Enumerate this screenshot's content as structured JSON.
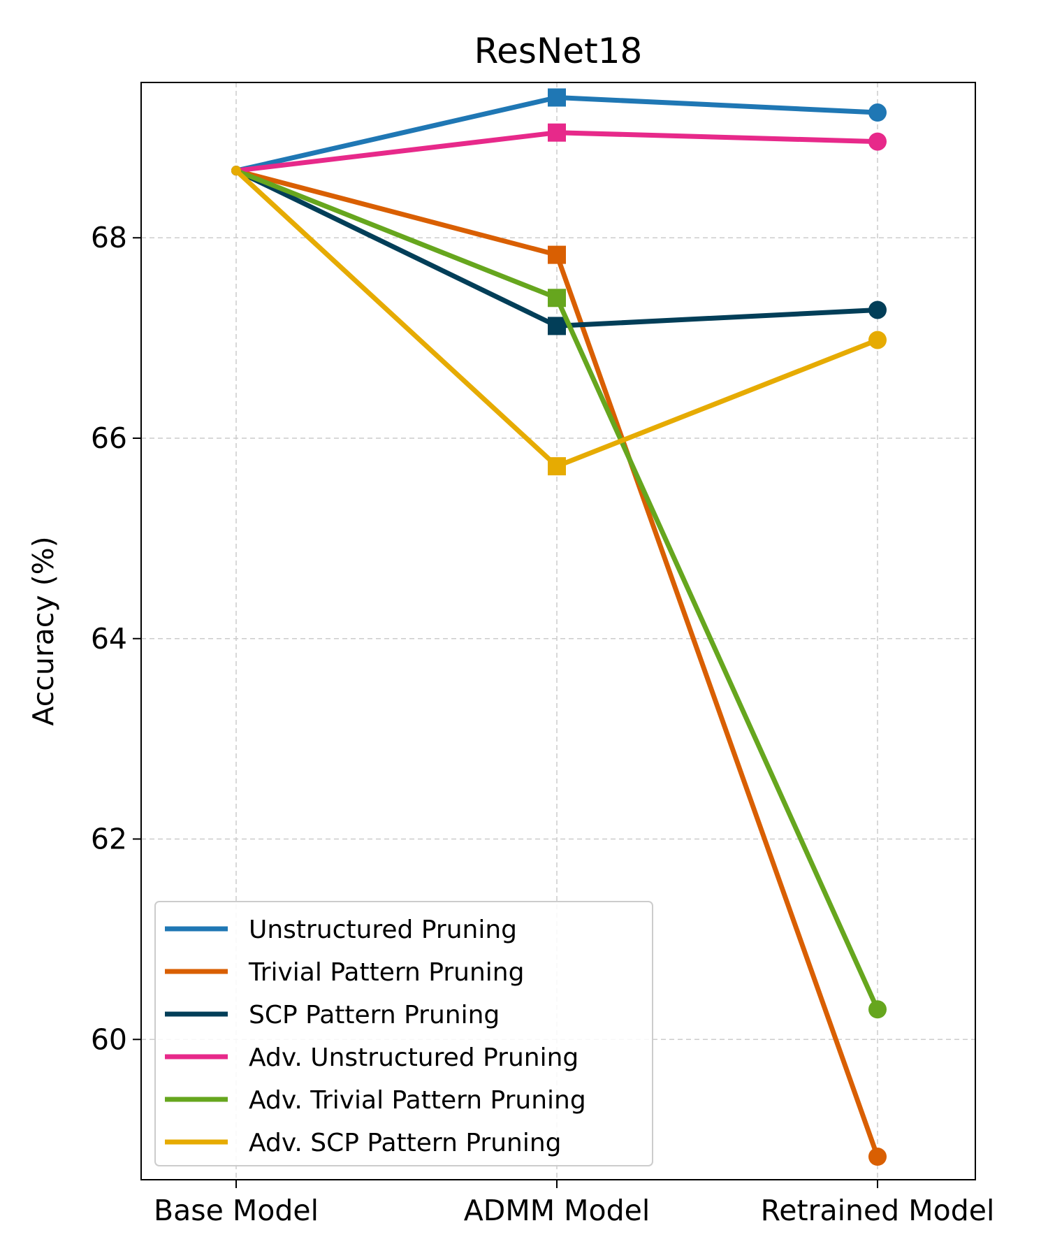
{
  "chart_data": {
    "type": "line",
    "title": "ResNet18",
    "xlabel": "",
    "ylabel": "Accuracy (%)",
    "categories": [
      "Base Model",
      "ADMM Model",
      "Retrained Model"
    ],
    "ylim": [
      58.6,
      69.55
    ],
    "yticks": [
      60,
      62,
      64,
      66,
      68
    ],
    "grid": true,
    "legend_position": "lower-left",
    "marker_by_category": [
      "none",
      "square",
      "circle"
    ],
    "series": [
      {
        "name": "Unstructured Pruning",
        "color": "#1f77b4",
        "values": [
          68.67,
          69.4,
          69.25
        ]
      },
      {
        "name": "Trivial Pattern Pruning",
        "color": "#d95f02",
        "values": [
          68.67,
          67.83,
          58.83
        ]
      },
      {
        "name": "SCP Pattern Pruning",
        "color": "#023e58",
        "values": [
          68.67,
          67.12,
          67.28
        ]
      },
      {
        "name": "Adv. Unstructured Pruning",
        "color": "#e7298a",
        "values": [
          68.67,
          69.05,
          68.96
        ]
      },
      {
        "name": "Adv. Trivial Pattern Pruning",
        "color": "#66a61e",
        "values": [
          68.67,
          67.4,
          60.3
        ]
      },
      {
        "name": "Adv. SCP Pattern Pruning",
        "color": "#e6ab02",
        "values": [
          68.67,
          65.72,
          66.98
        ]
      }
    ]
  }
}
